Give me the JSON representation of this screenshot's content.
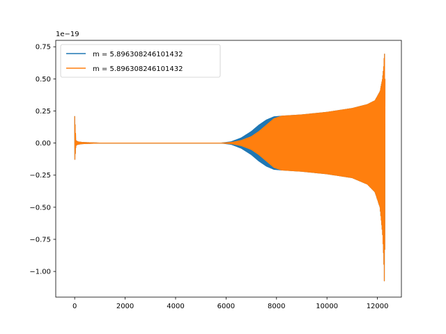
{
  "chart_data": {
    "type": "line",
    "title": "",
    "xlabel": "",
    "ylabel": "",
    "xlim": [
      -750,
      12950
    ],
    "ylim": [
      -1.2,
      0.8
    ],
    "x_ticks": [
      0,
      2000,
      4000,
      6000,
      8000,
      10000,
      12000
    ],
    "x_tick_labels": [
      "0",
      "2000",
      "4000",
      "6000",
      "8000",
      "10000",
      "12000"
    ],
    "y_ticks": [
      0.75,
      0.5,
      0.25,
      0.0,
      -0.25,
      -0.5,
      -0.75,
      -1.0
    ],
    "y_tick_labels": [
      "0.75",
      "0.50",
      "0.25",
      "0.00",
      "−0.25",
      "−0.50",
      "−0.75",
      "−1.00"
    ],
    "y_offset_label": "1e−19",
    "grid": false,
    "legend_position": "top-left",
    "series": [
      {
        "name": "m = 5.896308246101432",
        "color": "#1f77b4",
        "style": "oscillating-envelope",
        "envelope_x": [
          0,
          50,
          120,
          300,
          1000,
          5800,
          6200,
          6600,
          7000,
          7300,
          7600,
          7900,
          8200,
          9000,
          10000,
          11000,
          11600,
          11900,
          12100,
          12200,
          12250,
          12280,
          12300
        ],
        "envelope_upper": [
          0.21,
          0.02,
          0.01,
          0.005,
          0.0,
          0.0,
          0.01,
          0.04,
          0.09,
          0.14,
          0.18,
          0.205,
          0.21,
          0.22,
          0.24,
          0.27,
          0.3,
          0.33,
          0.4,
          0.5,
          0.6,
          0.72,
          0.5
        ],
        "envelope_lower": [
          -0.15,
          -0.02,
          -0.01,
          -0.005,
          0.0,
          0.0,
          -0.01,
          -0.04,
          -0.09,
          -0.14,
          -0.18,
          -0.205,
          -0.21,
          -0.22,
          -0.24,
          -0.27,
          -0.32,
          -0.38,
          -0.5,
          -0.7,
          -0.9,
          -1.12,
          -0.6
        ]
      },
      {
        "name": "m = 5.896308246101432",
        "color": "#ff7f0e",
        "style": "oscillating-envelope",
        "envelope_x": [
          0,
          50,
          120,
          300,
          1000,
          5800,
          6200,
          6600,
          7000,
          7300,
          7600,
          7900,
          8200,
          9000,
          10000,
          11000,
          11600,
          11900,
          12100,
          12200,
          12250,
          12280,
          12300
        ],
        "envelope_upper": [
          0.21,
          0.02,
          0.01,
          0.005,
          0.0,
          0.0,
          0.005,
          0.02,
          0.05,
          0.09,
          0.14,
          0.19,
          0.21,
          0.22,
          0.24,
          0.27,
          0.3,
          0.33,
          0.4,
          0.5,
          0.6,
          0.72,
          0.5
        ],
        "envelope_lower": [
          -0.15,
          -0.02,
          -0.01,
          -0.005,
          0.0,
          0.0,
          -0.005,
          -0.02,
          -0.05,
          -0.09,
          -0.14,
          -0.19,
          -0.21,
          -0.22,
          -0.24,
          -0.27,
          -0.32,
          -0.38,
          -0.5,
          -0.7,
          -0.9,
          -1.12,
          -0.6
        ]
      }
    ]
  }
}
